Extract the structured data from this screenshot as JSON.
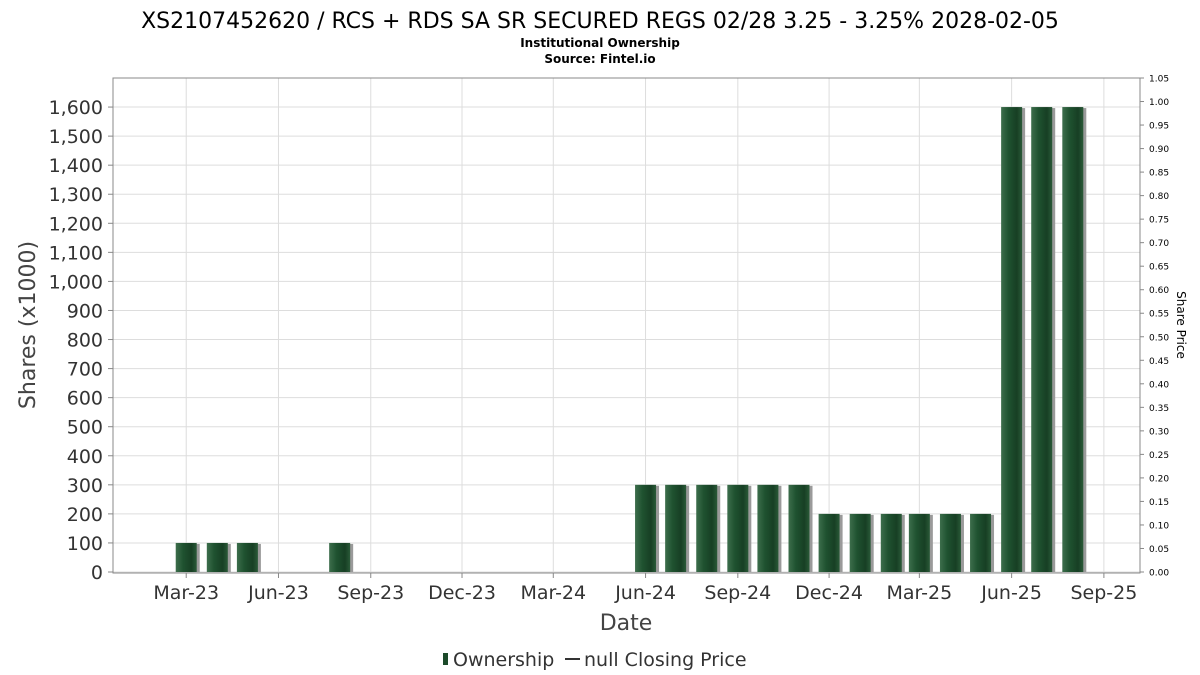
{
  "chart_data": {
    "type": "bar",
    "title": "XS2107452620 / RCS + RDS SA SR SECURED REGS 02/28 3.25 - 3.25% 2028-02-05",
    "subtitle": "Institutional Ownership",
    "source": "Source: Fintel.io",
    "xlabel": "Date",
    "ylabel": "Shares (x1000)",
    "y2label": "Share Price",
    "ylim": [
      0,
      1700
    ],
    "y2lim": [
      0,
      1.05
    ],
    "yticks": [
      0,
      100,
      200,
      300,
      400,
      500,
      600,
      700,
      800,
      900,
      1000,
      1100,
      1200,
      1300,
      1400,
      1500,
      1600
    ],
    "ytick_labels": [
      "0",
      "100",
      "200",
      "300",
      "400",
      "500",
      "600",
      "700",
      "800",
      "900",
      "1,000",
      "1,100",
      "1,200",
      "1,300",
      "1,400",
      "1,500",
      "1,600"
    ],
    "y2ticks": [
      0,
      0.05,
      0.1,
      0.15,
      0.2,
      0.25,
      0.3,
      0.35,
      0.4,
      0.45,
      0.5,
      0.55,
      0.6,
      0.65,
      0.7,
      0.75,
      0.8,
      0.85,
      0.9,
      0.95,
      1.0,
      1.05
    ],
    "y2tick_labels": [
      "0.00",
      "0.05",
      "0.10",
      "0.15",
      "0.20",
      "0.25",
      "0.30",
      "0.35",
      "0.40",
      "0.45",
      "0.50",
      "0.55",
      "0.60",
      "0.65",
      "0.70",
      "0.75",
      "0.80",
      "0.85",
      "0.90",
      "0.95",
      "1.00",
      "1.05"
    ],
    "xlim": [
      "2022-12-18",
      "2025-10-07"
    ],
    "xticks": [
      "2023-03-01",
      "2023-06-01",
      "2023-09-01",
      "2023-12-01",
      "2024-03-01",
      "2024-06-01",
      "2024-09-01",
      "2024-12-01",
      "2025-03-01",
      "2025-06-01",
      "2025-09-01"
    ],
    "xtick_labels": [
      "Mar-23",
      "Jun-23",
      "Sep-23",
      "Dec-23",
      "Mar-24",
      "Jun-24",
      "Sep-24",
      "Dec-24",
      "Mar-25",
      "Jun-25",
      "Sep-25"
    ],
    "grid": true,
    "legend_position": "bottom",
    "series": [
      {
        "name": "Ownership",
        "color": "#1c4a2a",
        "x": [
          "2023-03-01",
          "2023-04-01",
          "2023-05-01",
          "2023-08-01",
          "2024-06-01",
          "2024-07-01",
          "2024-08-01",
          "2024-09-01",
          "2024-10-01",
          "2024-11-01",
          "2024-12-01",
          "2025-01-01",
          "2025-02-01",
          "2025-03-01",
          "2025-04-01",
          "2025-05-01",
          "2025-06-01",
          "2025-07-01",
          "2025-08-01"
        ],
        "values": [
          100,
          100,
          100,
          100,
          300,
          300,
          300,
          300,
          300,
          300,
          200,
          200,
          200,
          200,
          200,
          200,
          1600,
          1600,
          1600
        ]
      },
      {
        "name": "null Closing Price",
        "color": "#333333",
        "values": []
      }
    ]
  }
}
